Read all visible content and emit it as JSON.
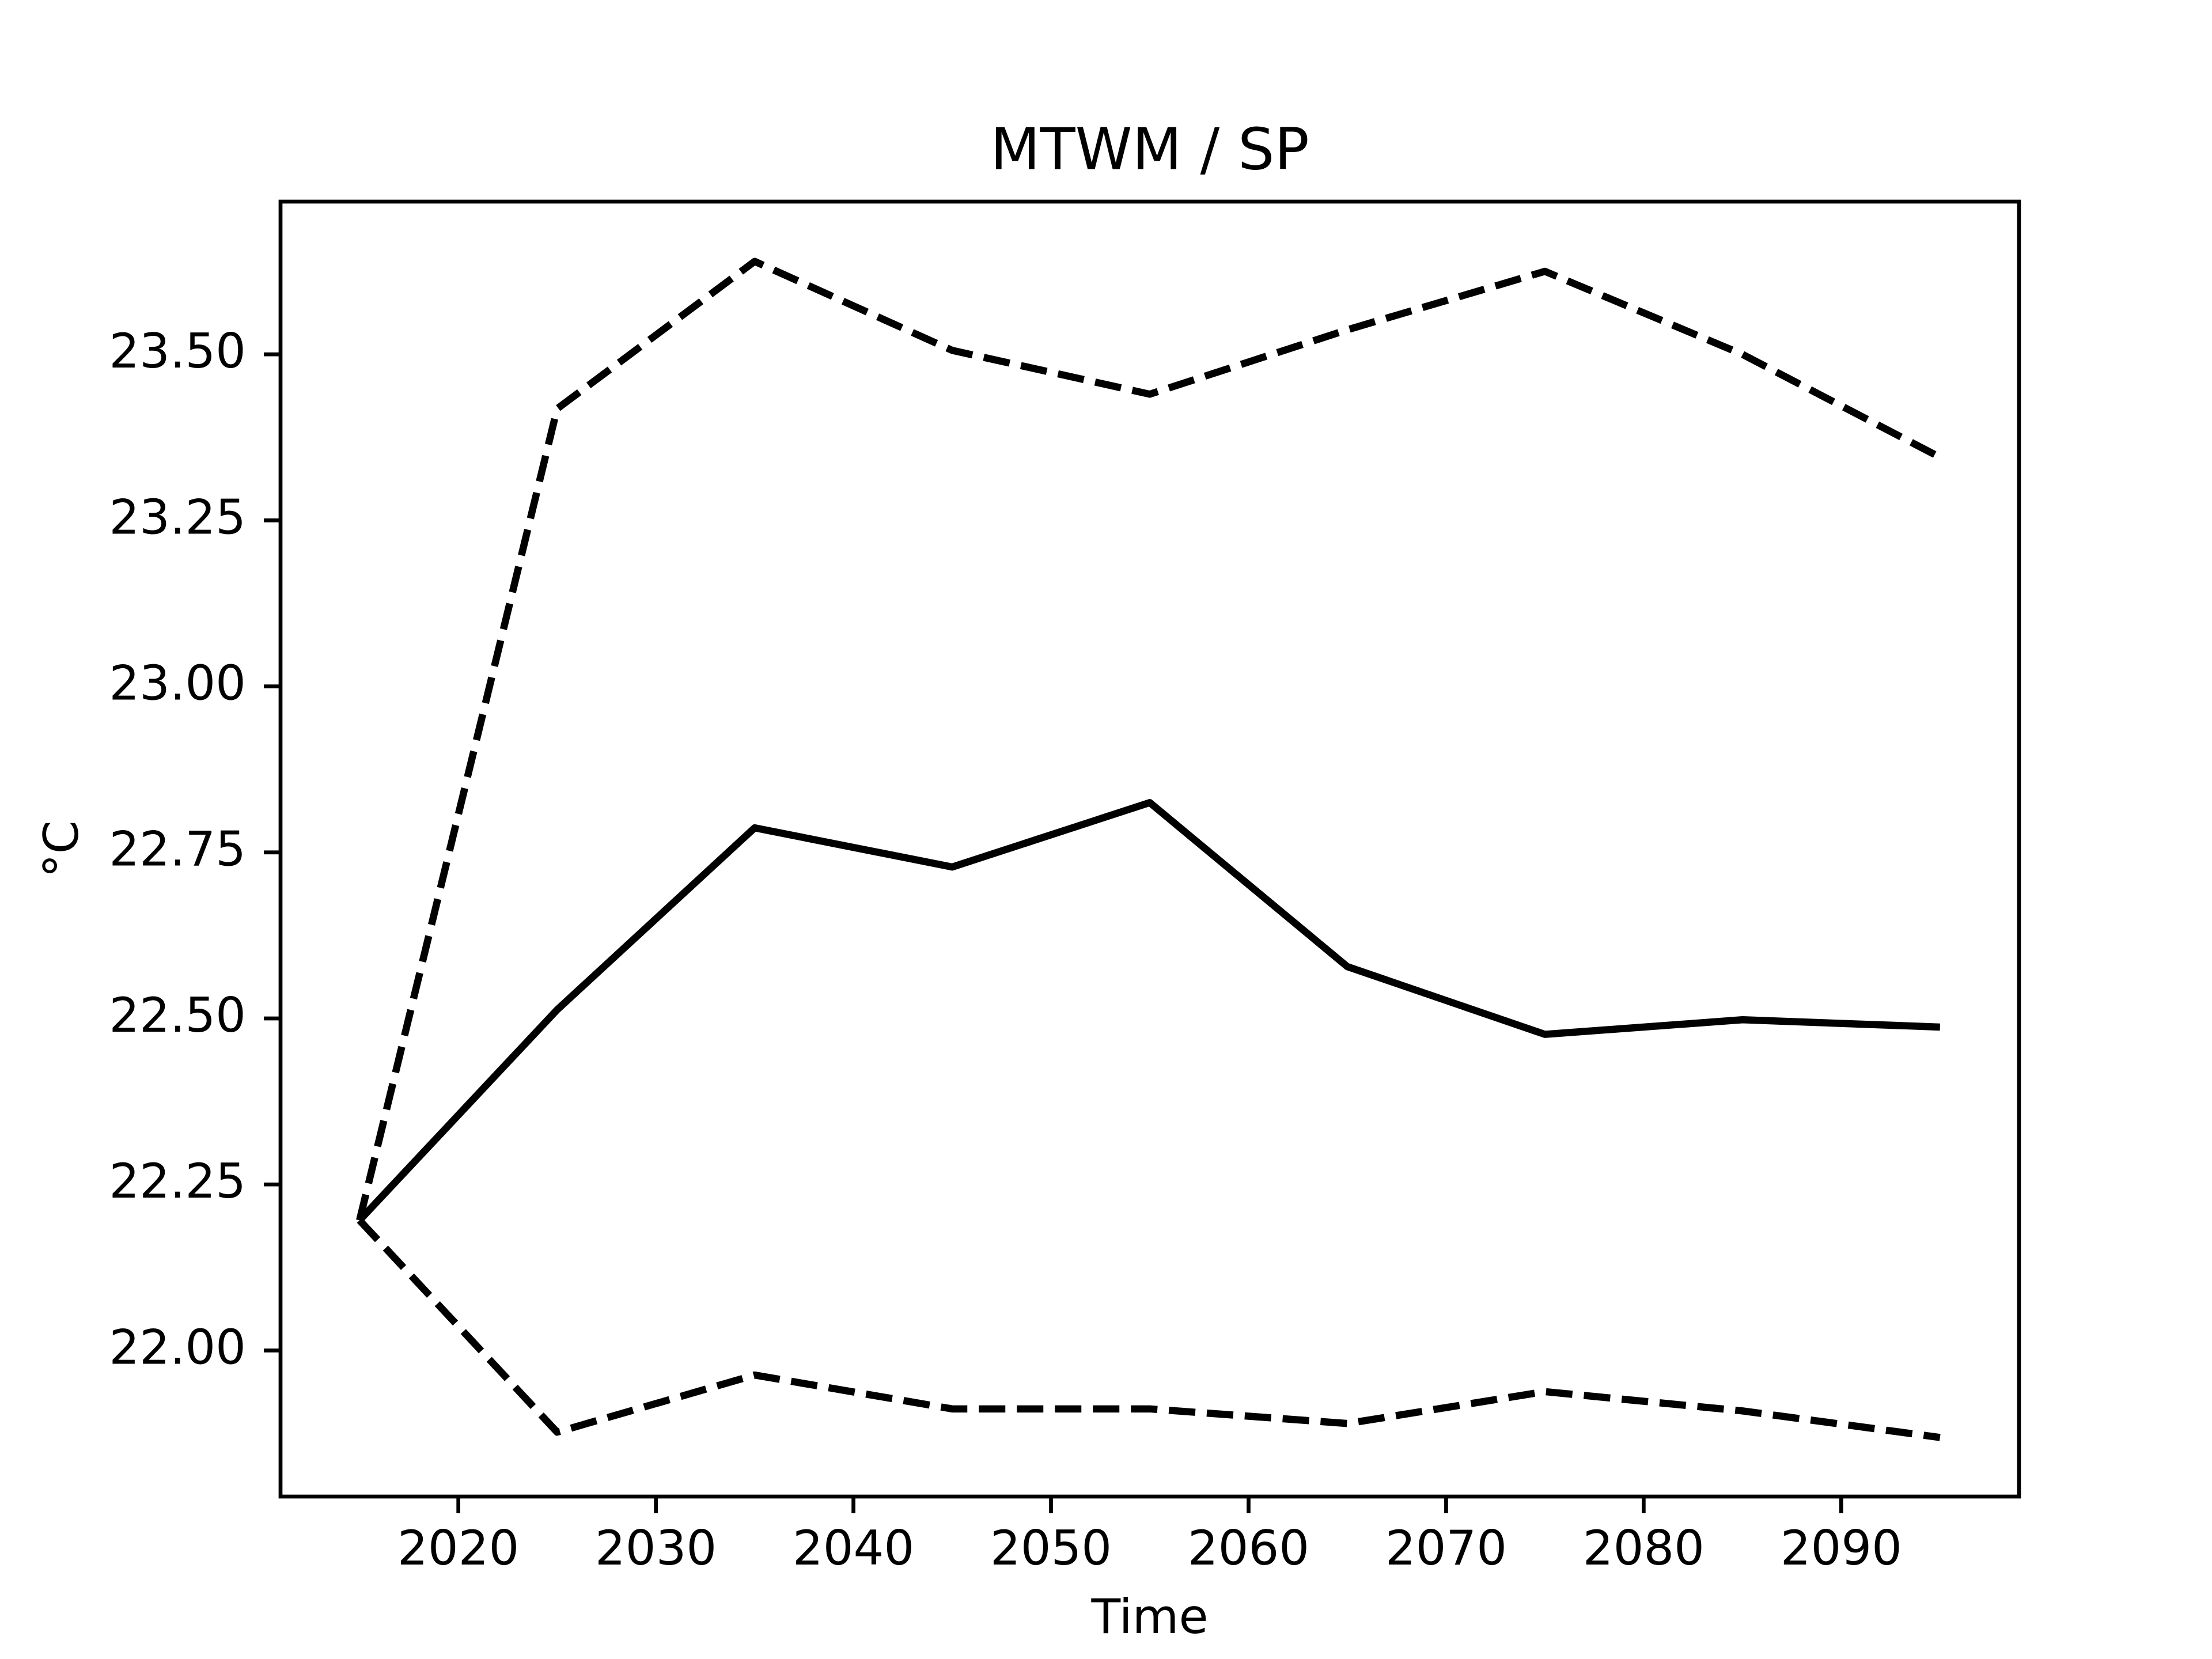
{
  "chart_data": {
    "type": "line",
    "title": "MTWM / SP",
    "xlabel": "Time",
    "ylabel": "°C",
    "x": [
      2015,
      2025,
      2035,
      2045,
      2055,
      2065,
      2075,
      2085,
      2095
    ],
    "series": [
      {
        "color": "#000000",
        "linestyle": "solid",
        "values": [
          22.196,
          22.513,
          22.787,
          22.728,
          22.825,
          22.578,
          22.476,
          22.498,
          22.487
        ]
      },
      {
        "color": "#000000",
        "linestyle": "dashed",
        "values": [
          22.196,
          23.418,
          23.64,
          23.506,
          23.44,
          23.537,
          23.625,
          23.5,
          23.345
        ]
      },
      {
        "color": "#000000",
        "linestyle": "dashed",
        "values": [
          22.196,
          21.877,
          21.963,
          21.912,
          21.912,
          21.89,
          21.938,
          21.909,
          21.869
        ]
      }
    ],
    "xlim": [
      2011,
      2099
    ],
    "xticks": [
      2020,
      2030,
      2040,
      2050,
      2060,
      2070,
      2080,
      2090
    ],
    "ylim": [
      21.78,
      23.73
    ],
    "yticks": [
      {
        "value": 22,
        "label": "22.00"
      },
      {
        "value": 22.25,
        "label": "22.25"
      },
      {
        "value": 22.5,
        "label": "22.50"
      },
      {
        "value": 22.75,
        "label": "22.75"
      },
      {
        "value": 23,
        "label": "23.00"
      },
      {
        "value": 23.25,
        "label": "23.25"
      },
      {
        "value": 23.5,
        "label": "23.50"
      }
    ],
    "grid": false
  }
}
